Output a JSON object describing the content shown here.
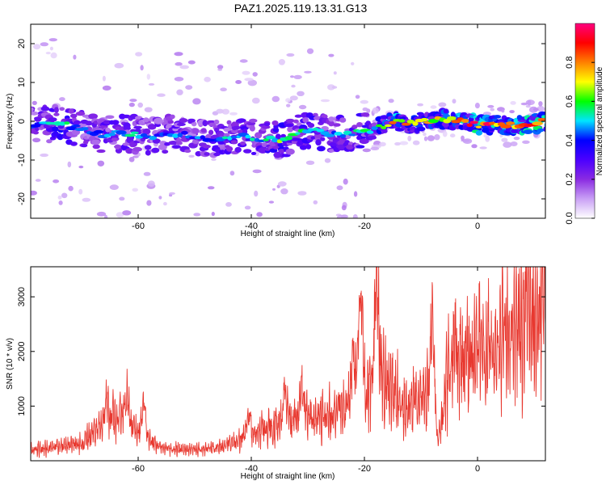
{
  "figure_title": "PAZ1.2025.119.13.31.G13",
  "chart_data": [
    {
      "type": "heatmap",
      "title": "",
      "xlabel": "Height of straight line (km)",
      "ylabel": "Frequency (Hz)",
      "xlim": [
        -79,
        12
      ],
      "ylim": [
        -25,
        25
      ],
      "xticks": [
        -60,
        -40,
        -20,
        0
      ],
      "yticks": [
        -20,
        -10,
        0,
        10,
        20
      ],
      "colorbar": {
        "label": "Normalized spectral amplitude",
        "range": [
          0,
          1
        ],
        "ticks": [
          0.0,
          0.2,
          0.4,
          0.6,
          0.8
        ],
        "colors": [
          "#ffffff",
          "#c9a0f5",
          "#8a2be2",
          "#4b00ff",
          "#0000ff",
          "#00e5ff",
          "#00ff00",
          "#ffff00",
          "#ff8000",
          "#ff0000",
          "#ff007f"
        ]
      },
      "ridge": [
        {
          "x": -78,
          "f": -1.0,
          "a": 0.45
        },
        {
          "x": -74,
          "f": -0.5,
          "a": 0.65
        },
        {
          "x": -70,
          "f": -2.0,
          "a": 0.45
        },
        {
          "x": -66,
          "f": -3.5,
          "a": 0.5
        },
        {
          "x": -62,
          "f": -3.0,
          "a": 0.55
        },
        {
          "x": -58,
          "f": -4.0,
          "a": 0.45
        },
        {
          "x": -54,
          "f": -3.0,
          "a": 0.5
        },
        {
          "x": -50,
          "f": -4.0,
          "a": 0.45
        },
        {
          "x": -46,
          "f": -4.5,
          "a": 0.5
        },
        {
          "x": -42,
          "f": -4.0,
          "a": 0.55
        },
        {
          "x": -38,
          "f": -4.5,
          "a": 0.55
        },
        {
          "x": -35,
          "f": -5.0,
          "a": 0.65
        },
        {
          "x": -32,
          "f": -3.0,
          "a": 0.55
        },
        {
          "x": -29,
          "f": -2.5,
          "a": 0.6
        },
        {
          "x": -26,
          "f": -3.5,
          "a": 0.5
        },
        {
          "x": -22,
          "f": -3.0,
          "a": 0.55
        },
        {
          "x": -18,
          "f": -2.0,
          "a": 0.6
        },
        {
          "x": -15,
          "f": 0.0,
          "a": 0.85
        },
        {
          "x": -12,
          "f": -0.5,
          "a": 0.8
        },
        {
          "x": -9,
          "f": 0.0,
          "a": 0.75
        },
        {
          "x": -6,
          "f": 0.5,
          "a": 0.75
        },
        {
          "x": -3,
          "f": 0.0,
          "a": 0.85
        },
        {
          "x": 0,
          "f": -1.0,
          "a": 0.95
        },
        {
          "x": 4,
          "f": -1.0,
          "a": 0.9
        },
        {
          "x": 8,
          "f": -1.0,
          "a": 0.95
        },
        {
          "x": 12,
          "f": 0.0,
          "a": 0.95
        }
      ]
    },
    {
      "type": "line",
      "title": "",
      "xlabel": "Height of straight line (km)",
      "ylabel": "SNR (10 * v/v)",
      "xlim": [
        -79,
        12
      ],
      "ylim": [
        0,
        3550
      ],
      "xticks": [
        -60,
        -40,
        -20,
        0
      ],
      "yticks": [
        1000,
        2000,
        3000
      ],
      "series": [
        {
          "color": "#e8382f",
          "envelope": [
            {
              "x": -79,
              "y": 200
            },
            {
              "x": -70,
              "y": 320
            },
            {
              "x": -66,
              "y": 700
            },
            {
              "x": -63,
              "y": 850
            },
            {
              "x": -60,
              "y": 500
            },
            {
              "x": -56,
              "y": 250
            },
            {
              "x": -50,
              "y": 200
            },
            {
              "x": -45,
              "y": 250
            },
            {
              "x": -40,
              "y": 500
            },
            {
              "x": -35,
              "y": 700
            },
            {
              "x": -30,
              "y": 800
            },
            {
              "x": -25,
              "y": 900
            },
            {
              "x": -22,
              "y": 1000
            },
            {
              "x": -20,
              "y": 1200
            },
            {
              "x": -18,
              "y": 1800
            },
            {
              "x": -16,
              "y": 1400
            },
            {
              "x": -13,
              "y": 1000
            },
            {
              "x": -10,
              "y": 1200
            },
            {
              "x": -8,
              "y": 1300
            },
            {
              "x": -7,
              "y": 300
            },
            {
              "x": -5,
              "y": 1800
            },
            {
              "x": -2,
              "y": 1900
            },
            {
              "x": 2,
              "y": 2000
            },
            {
              "x": 5,
              "y": 2300
            },
            {
              "x": 8,
              "y": 2500
            },
            {
              "x": 11,
              "y": 2500
            },
            {
              "x": 12,
              "y": 3200
            }
          ],
          "peaks": [
            {
              "x": -65.5,
              "y": 1180
            },
            {
              "x": -62.0,
              "y": 1260
            },
            {
              "x": -59.0,
              "y": 1200
            },
            {
              "x": -40.5,
              "y": 900
            },
            {
              "x": -34.0,
              "y": 1450
            },
            {
              "x": -31.0,
              "y": 1550
            },
            {
              "x": -22.0,
              "y": 2050
            },
            {
              "x": -21.0,
              "y": 2350
            },
            {
              "x": -20.5,
              "y": 2700
            },
            {
              "x": -17.8,
              "y": 3550
            },
            {
              "x": -8.0,
              "y": 2800
            },
            {
              "x": -4.0,
              "y": 2250
            },
            {
              "x": 0.5,
              "y": 2500
            },
            {
              "x": 4.5,
              "y": 2800
            },
            {
              "x": 8.5,
              "y": 2900
            }
          ]
        }
      ]
    }
  ]
}
